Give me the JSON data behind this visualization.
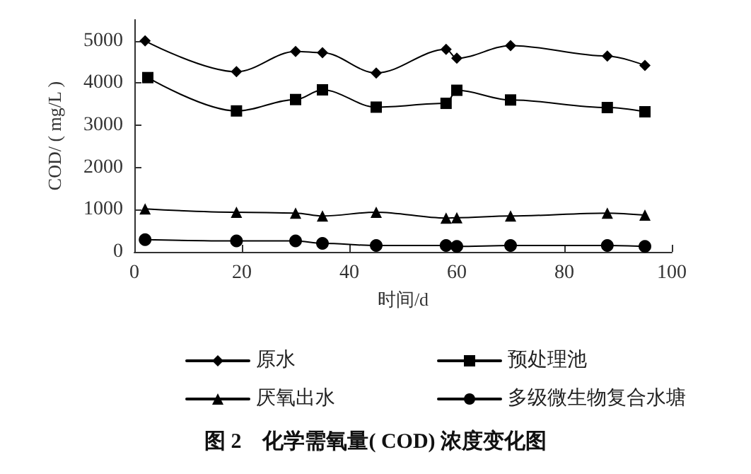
{
  "chart_data": {
    "type": "line",
    "title": "图 2　化学需氧量( COD) 浓度变化图",
    "xlabel": "时间/d",
    "ylabel": "COD/ ( mg/L )",
    "x": [
      2,
      19,
      30,
      35,
      45,
      58,
      60,
      70,
      88,
      95
    ],
    "series": [
      {
        "name": "原水",
        "color": "#000000",
        "marker": "diamond",
        "values": [
          5000,
          4270,
          4750,
          4720,
          4240,
          4800,
          4590,
          4890,
          4640,
          4420
        ]
      },
      {
        "name": "预处理池",
        "color": "#000000",
        "marker": "square",
        "x": [
          2.5,
          19,
          30,
          35,
          45,
          58,
          60,
          70,
          88,
          95
        ],
        "values": [
          4130,
          3340,
          3610,
          3840,
          3430,
          3520,
          3830,
          3600,
          3420,
          3320
        ]
      },
      {
        "name": "厌氧出水",
        "color": "#000000",
        "marker": "triangle",
        "values": [
          1020,
          940,
          920,
          850,
          940,
          800,
          810,
          850,
          920,
          870
        ]
      },
      {
        "name": "多级微生物复合水塘",
        "color": "#000000",
        "marker": "circle",
        "values": [
          290,
          260,
          260,
          200,
          150,
          150,
          130,
          150,
          150,
          130
        ]
      }
    ],
    "xlim": [
      0,
      100
    ],
    "xticks": [
      0,
      20,
      40,
      60,
      80,
      100
    ],
    "ylim": [
      0,
      5500
    ],
    "yticks": [
      0,
      1000,
      2000,
      3000,
      4000,
      5000
    ],
    "grid": false,
    "legend": "bottom",
    "line_style": "solid"
  }
}
